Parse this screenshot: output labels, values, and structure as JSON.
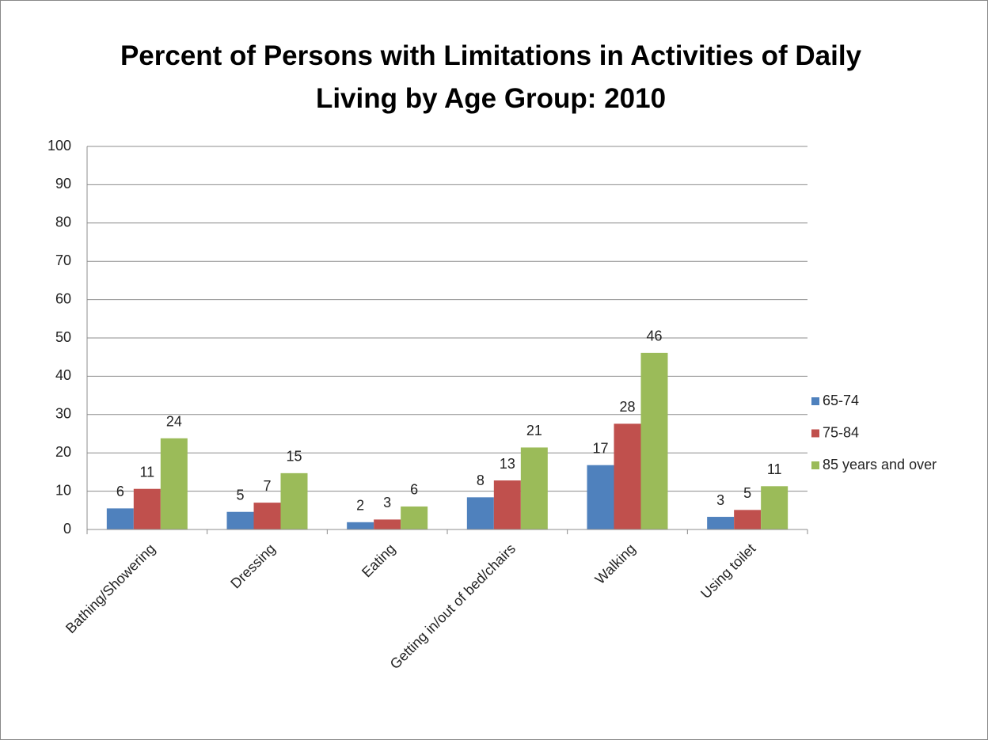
{
  "chart_data": {
    "type": "bar",
    "title": "Percent of Persons with Limitations in Activities of Daily Living by Age Group: 2010",
    "categories": [
      "Bathing/Showering",
      "Dressing",
      "Eating",
      "Getting in/out of bed/chairs",
      "Walking",
      "Using toilet"
    ],
    "series": [
      {
        "name": "65-74",
        "color": "#4f81bd",
        "values": [
          5.5,
          4.6,
          1.9,
          8.4,
          16.8,
          3.3
        ],
        "value_labels": [
          "6",
          "5",
          "2",
          "8",
          "17",
          "3"
        ]
      },
      {
        "name": "75-84",
        "color": "#c0504d",
        "values": [
          10.6,
          7.0,
          2.6,
          12.8,
          27.6,
          5.1
        ],
        "value_labels": [
          "11",
          "7",
          "3",
          "13",
          "28",
          "5"
        ]
      },
      {
        "name": "85 years and over",
        "color": "#9bbb59",
        "values": [
          23.8,
          14.7,
          6.0,
          21.4,
          46.1,
          11.3
        ],
        "value_labels": [
          "24",
          "15",
          "6",
          "21",
          "46",
          "11"
        ]
      }
    ],
    "ylim": [
      0,
      100
    ],
    "yticks": [
      0,
      10,
      20,
      30,
      40,
      50,
      60,
      70,
      80,
      90,
      100
    ],
    "grid": true,
    "legend": "right"
  }
}
